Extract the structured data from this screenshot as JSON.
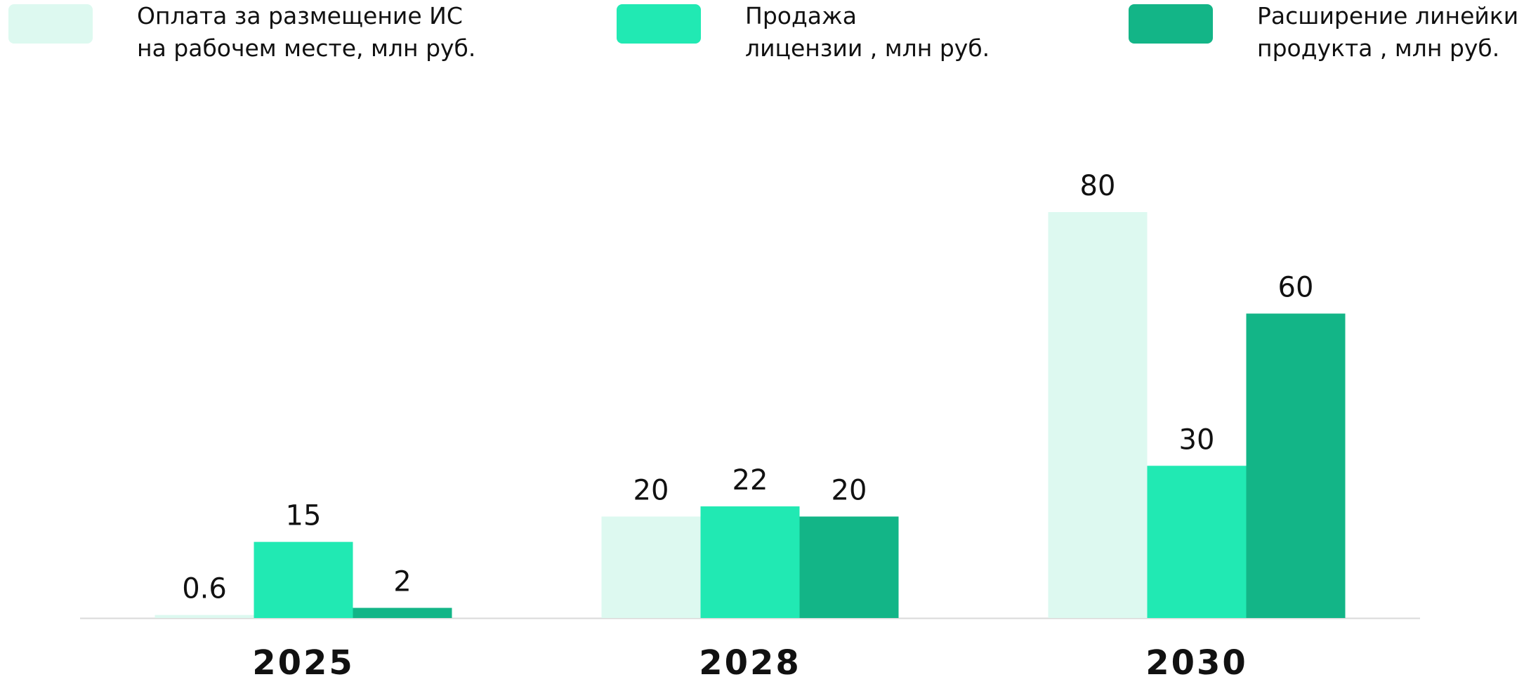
{
  "chart_data": {
    "type": "bar",
    "title": "",
    "xlabel": "",
    "ylabel": "",
    "ylim": [
      0,
      80
    ],
    "grid": false,
    "legend_position": "top",
    "categories": [
      "2025",
      "2028",
      "2030"
    ],
    "series": [
      {
        "name": "Оплата за размещение ИС на рабочем месте, млн руб.",
        "name_lines": [
          "Оплата за размещение ИС",
          "на рабочем месте, млн руб."
        ],
        "color": "#DDF9F0",
        "values": [
          0.6,
          20,
          80
        ],
        "value_labels": [
          "0.6",
          "20",
          "80"
        ]
      },
      {
        "name": "Продажа лицензии , млн руб.",
        "name_lines": [
          "Продажа",
          "лицензии , млн руб."
        ],
        "color": "#21E9B3",
        "values": [
          15,
          22,
          30
        ],
        "value_labels": [
          "15",
          "22",
          "30"
        ]
      },
      {
        "name": "Расширение линейки продукта , млн руб.",
        "name_lines": [
          "Расширение линейки",
          "продукта , млн руб."
        ],
        "color": "#13B587",
        "values": [
          2,
          20,
          60
        ],
        "value_labels": [
          "2",
          "20",
          "60"
        ]
      }
    ],
    "baseline_color": "#D9D9D9"
  }
}
